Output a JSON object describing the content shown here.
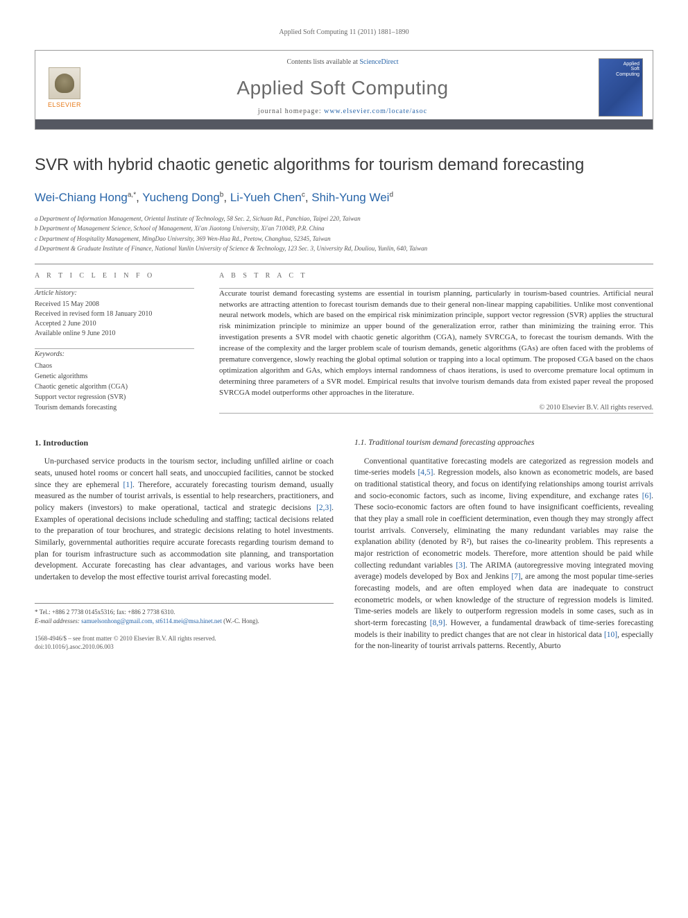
{
  "running_header": "Applied Soft Computing 11 (2011) 1881–1890",
  "masthead": {
    "publisher": "ELSEVIER",
    "contents_prefix": "Contents lists available at ",
    "contents_link": "ScienceDirect",
    "journal_title": "Applied Soft Computing",
    "homepage_prefix": "journal homepage: ",
    "homepage_link": "www.elsevier.com/locate/asoc",
    "cover_label": "Applied\nSoft\nComputing"
  },
  "article": {
    "title": "SVR with hybrid chaotic genetic algorithms for tourism demand forecasting",
    "authors_html": "Wei-Chiang Hong",
    "authors": [
      {
        "name": "Wei-Chiang Hong",
        "marks": "a,*"
      },
      {
        "name": "Yucheng Dong",
        "marks": "b"
      },
      {
        "name": "Li-Yueh Chen",
        "marks": "c"
      },
      {
        "name": "Shih-Yung Wei",
        "marks": "d"
      }
    ],
    "affiliations": [
      "a Department of Information Management, Oriental Institute of Technology, 58 Sec. 2, Sichuan Rd., Panchiao, Taipei 220, Taiwan",
      "b Department of Management Science, School of Management, Xi'an Jiaotong University, Xi'an 710049, P.R. China",
      "c Department of Hospitality Management, MingDao University, 369 Wen-Hua Rd., Peetow, Changhua, 52345, Taiwan",
      "d Department & Graduate Institute of Finance, National Yunlin University of Science & Technology, 123 Sec. 3, University Rd, Douliou, Yunlin, 640, Taiwan"
    ]
  },
  "info": {
    "heading": "A R T I C L E   I N F O",
    "history_label": "Article history:",
    "history": [
      "Received 15 May 2008",
      "Received in revised form 18 January 2010",
      "Accepted 2 June 2010",
      "Available online 9 June 2010"
    ],
    "keywords_label": "Keywords:",
    "keywords": [
      "Chaos",
      "Genetic algorithms",
      "Chaotic genetic algorithm (CGA)",
      "Support vector regression (SVR)",
      "Tourism demands forecasting"
    ]
  },
  "abstract": {
    "heading": "A B S T R A C T",
    "text": "Accurate tourist demand forecasting systems are essential in tourism planning, particularly in tourism-based countries. Artificial neural networks are attracting attention to forecast tourism demands due to their general non-linear mapping capabilities. Unlike most conventional neural network models, which are based on the empirical risk minimization principle, support vector regression (SVR) applies the structural risk minimization principle to minimize an upper bound of the generalization error, rather than minimizing the training error. This investigation presents a SVR model with chaotic genetic algorithm (CGA), namely SVRCGA, to forecast the tourism demands. With the increase of the complexity and the larger problem scale of tourism demands, genetic algorithms (GAs) are often faced with the problems of premature convergence, slowly reaching the global optimal solution or trapping into a local optimum. The proposed CGA based on the chaos optimization algorithm and GAs, which employs internal randomness of chaos iterations, is used to overcome premature local optimum in determining three parameters of a SVR model. Empirical results that involve tourism demands data from existed paper reveal the proposed SVRCGA model outperforms other approaches in the literature.",
    "copyright": "© 2010 Elsevier B.V. All rights reserved."
  },
  "body": {
    "left": {
      "heading": "1. Introduction",
      "p1": "Un-purchased service products in the tourism sector, including unfilled airline or coach seats, unused hotel rooms or concert hall seats, and unoccupied facilities, cannot be stocked since they are ephemeral [1]. Therefore, accurately forecasting tourism demand, usually measured as the number of tourist arrivals, is essential to help researchers, practitioners, and policy makers (investors) to make operational, tactical and strategic decisions [2,3]. Examples of operational decisions include scheduling and staffing; tactical decisions related to the preparation of tour brochures, and strategic decisions relating to hotel investments. Similarly, governmental authorities require accurate forecasts regarding tourism demand to plan for tourism infrastructure such as accommodation site planning, and transportation development. Accurate forecasting has clear advantages, and various works have been undertaken to develop the most effective tourist arrival forecasting model."
    },
    "right": {
      "heading": "1.1. Traditional tourism demand forecasting approaches",
      "p1": "Conventional quantitative forecasting models are categorized as regression models and time-series models [4,5]. Regression models, also known as econometric models, are based on traditional statistical theory, and focus on identifying relationships among tourist arrivals and socio-economic factors, such as income, living expenditure, and exchange rates [6]. These socio-economic factors are often found to have insignificant coefficients, revealing that they play a small role in coefficient determination, even though they may strongly affect tourist arrivals. Conversely, eliminating the many redundant variables may raise the explanation ability (denoted by R²), but raises the co-linearity problem. This represents a major restriction of econometric models. Therefore, more attention should be paid while collecting redundant variables [3]. The ARIMA (autoregressive moving integrated moving average) models developed by Box and Jenkins [7], are among the most popular time-series forecasting models, and are often employed when data are inadequate to construct econometric models, or when knowledge of the structure of regression models is limited. Time-series models are likely to outperform regression models in some cases, such as in short-term forecasting [8,9]. However, a fundamental drawback of time-series forecasting models is their inability to predict changes that are not clear in historical data [10], especially for the non-linearity of tourist arrivals patterns. Recently, Aburto"
    }
  },
  "footnotes": {
    "corr": "* Tel.: +886 2 7738 0145x5316; fax: +886 2 7738 6310.",
    "email_label": "E-mail addresses:",
    "emails": "samuelsonhong@gmail.com, st6114.mei@msa.hinet.net",
    "email_suffix": "(W.-C. Hong)."
  },
  "footer": {
    "issn": "1568-4946/$ – see front matter © 2010 Elsevier B.V. All rights reserved.",
    "doi": "doi:10.1016/j.asoc.2010.06.003"
  },
  "colors": {
    "link": "#2764a8",
    "publisher_orange": "#e67817",
    "bar": "#555861",
    "cover_blue": "#3a5fb0"
  }
}
